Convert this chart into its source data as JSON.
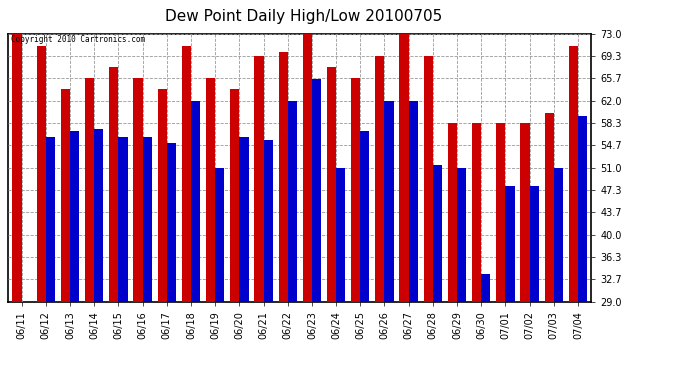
{
  "title": "Dew Point Daily High/Low 20100705",
  "copyright": "Copyright 2010 Cartronics.com",
  "dates": [
    "06/11",
    "06/12",
    "06/13",
    "06/14",
    "06/15",
    "06/16",
    "06/17",
    "06/18",
    "06/19",
    "06/20",
    "06/21",
    "06/22",
    "06/23",
    "06/24",
    "06/25",
    "06/26",
    "06/27",
    "06/28",
    "06/29",
    "06/30",
    "07/01",
    "07/02",
    "07/03",
    "07/04"
  ],
  "highs": [
    73.0,
    71.0,
    64.0,
    65.7,
    67.5,
    65.7,
    64.0,
    71.0,
    65.7,
    64.0,
    69.3,
    70.0,
    73.0,
    67.5,
    65.7,
    69.3,
    73.0,
    69.3,
    58.3,
    58.3,
    58.3,
    58.3,
    60.0,
    71.0
  ],
  "lows": [
    29.0,
    56.0,
    57.0,
    57.3,
    56.0,
    56.0,
    55.0,
    62.0,
    51.0,
    56.0,
    55.5,
    62.0,
    65.5,
    51.0,
    57.0,
    62.0,
    62.0,
    51.5,
    51.0,
    33.5,
    48.0,
    48.0,
    51.0,
    59.5
  ],
  "high_color": "#cc0000",
  "low_color": "#0000cc",
  "ylim_min": 29.0,
  "ylim_max": 73.0,
  "yticks": [
    29.0,
    32.7,
    36.3,
    40.0,
    43.7,
    47.3,
    51.0,
    54.7,
    58.3,
    62.0,
    65.7,
    69.3,
    73.0
  ],
  "background_color": "#ffffff",
  "plot_bg_color": "#ffffff",
  "grid_color": "#999999",
  "title_fontsize": 11,
  "tick_fontsize": 7,
  "copyright_fontsize": 5.5
}
